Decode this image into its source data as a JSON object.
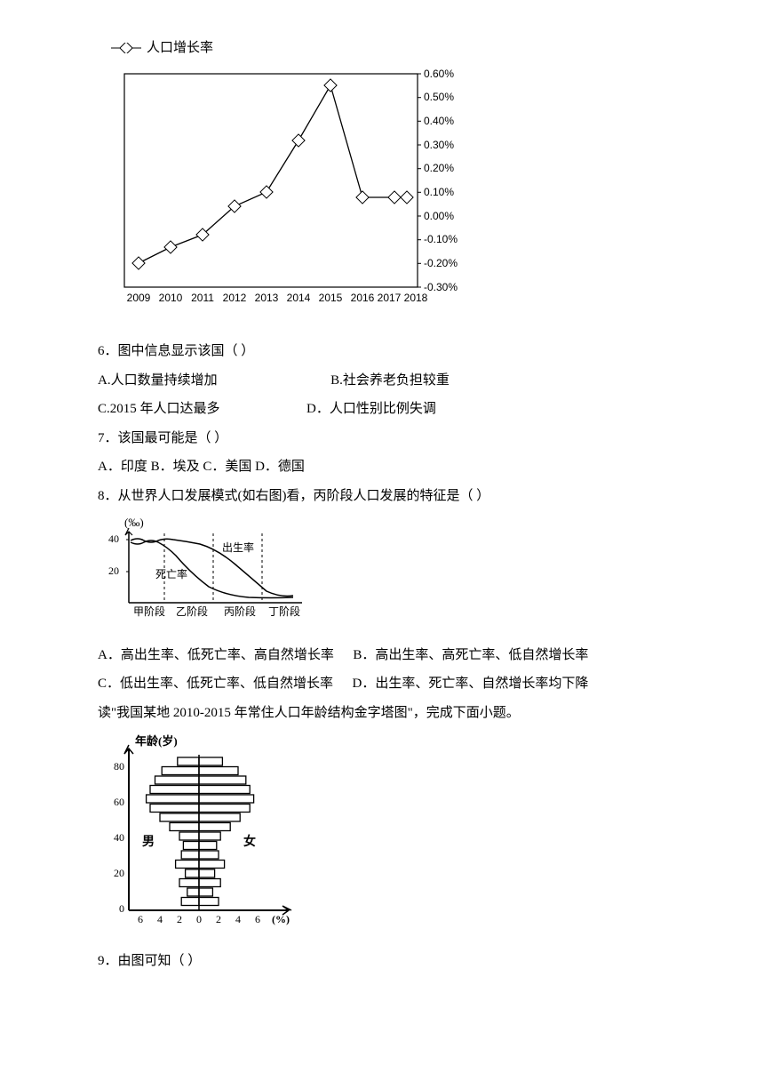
{
  "chart1": {
    "legend_label": "人口增长率",
    "x_labels": [
      "2009",
      "2010",
      "2011",
      "2012",
      "2013",
      "2014",
      "2015",
      "2016",
      "2017",
      "2018"
    ],
    "y_labels": [
      "0.60%",
      "0.50%",
      "0.40%",
      "0.30%",
      "0.20%",
      "0.10%",
      "0.00%",
      "-0.10%",
      "-0.20%",
      "-0.30%"
    ],
    "data": [
      -0.2,
      -0.13,
      -0.08,
      0.04,
      0.1,
      0.32,
      0.55,
      0.08,
      0.08,
      0.08
    ],
    "ylim": [
      -0.3,
      0.6
    ],
    "ytick_step": 0.1,
    "line_color": "#000000",
    "marker": "diamond",
    "bg": "#ffffff",
    "border_color": "#000000"
  },
  "chart2": {
    "y_axis_unit": "(‰)",
    "y_ticks": [
      "40",
      "20"
    ],
    "x_labels": [
      "甲阶段",
      "乙阶段",
      "丙阶段",
      "丁阶段"
    ],
    "label_birth": "出生率",
    "label_death": "死亡率"
  },
  "chart3": {
    "y_label": "年龄(岁)",
    "y_ticks": [
      "80",
      "60",
      "40",
      "20",
      "0"
    ],
    "x_ticks": [
      "6",
      "4",
      "2",
      "0",
      "2",
      "4",
      "6"
    ],
    "x_unit": "(%)",
    "left_label": "男",
    "right_label": "女",
    "bars": [
      {
        "left": 2.2,
        "right": 2.4
      },
      {
        "left": 3.8,
        "right": 4.0
      },
      {
        "left": 4.5,
        "right": 4.8
      },
      {
        "left": 5.0,
        "right": 5.2
      },
      {
        "left": 5.4,
        "right": 5.6
      },
      {
        "left": 5.0,
        "right": 5.2
      },
      {
        "left": 4.0,
        "right": 4.2
      },
      {
        "left": 3.0,
        "right": 3.2
      },
      {
        "left": 2.0,
        "right": 2.2
      },
      {
        "left": 1.6,
        "right": 1.8
      },
      {
        "left": 1.8,
        "right": 2.0
      },
      {
        "left": 2.4,
        "right": 2.6
      },
      {
        "left": 1.4,
        "right": 1.6
      },
      {
        "left": 2.0,
        "right": 2.2
      },
      {
        "left": 1.2,
        "right": 1.4
      },
      {
        "left": 1.8,
        "right": 2.0
      }
    ]
  },
  "q6": {
    "stem": "6．图中信息显示该国（ ）",
    "optA": "A.人口数量持续增加",
    "optB": "B.社会养老负担较重",
    "optC": " C.2015 年人口达最多",
    "optD": "D．人口性别比例失调"
  },
  "q7": {
    "stem": "7．该国最可能是（ ）",
    "opts": "A．印度 B．埃及 C．美国 D．德国"
  },
  "q8": {
    "stem": "8．从世界人口发展模式(如右图)看，丙阶段人口发展的特征是（ ）",
    "optA": "A．高出生率、低死亡率、高自然增长率",
    "optB": "B．高出生率、高死亡率、低自然增长率",
    "optC": "C．低出生率、低死亡率、低自然增长率",
    "optD": "D．出生率、死亡率、自然增长率均下降"
  },
  "intro3": "读\"我国某地 2010-2015 年常住人口年龄结构金字塔图\"，完成下面小题。",
  "q9": {
    "stem": "9．由图可知（ ）"
  }
}
